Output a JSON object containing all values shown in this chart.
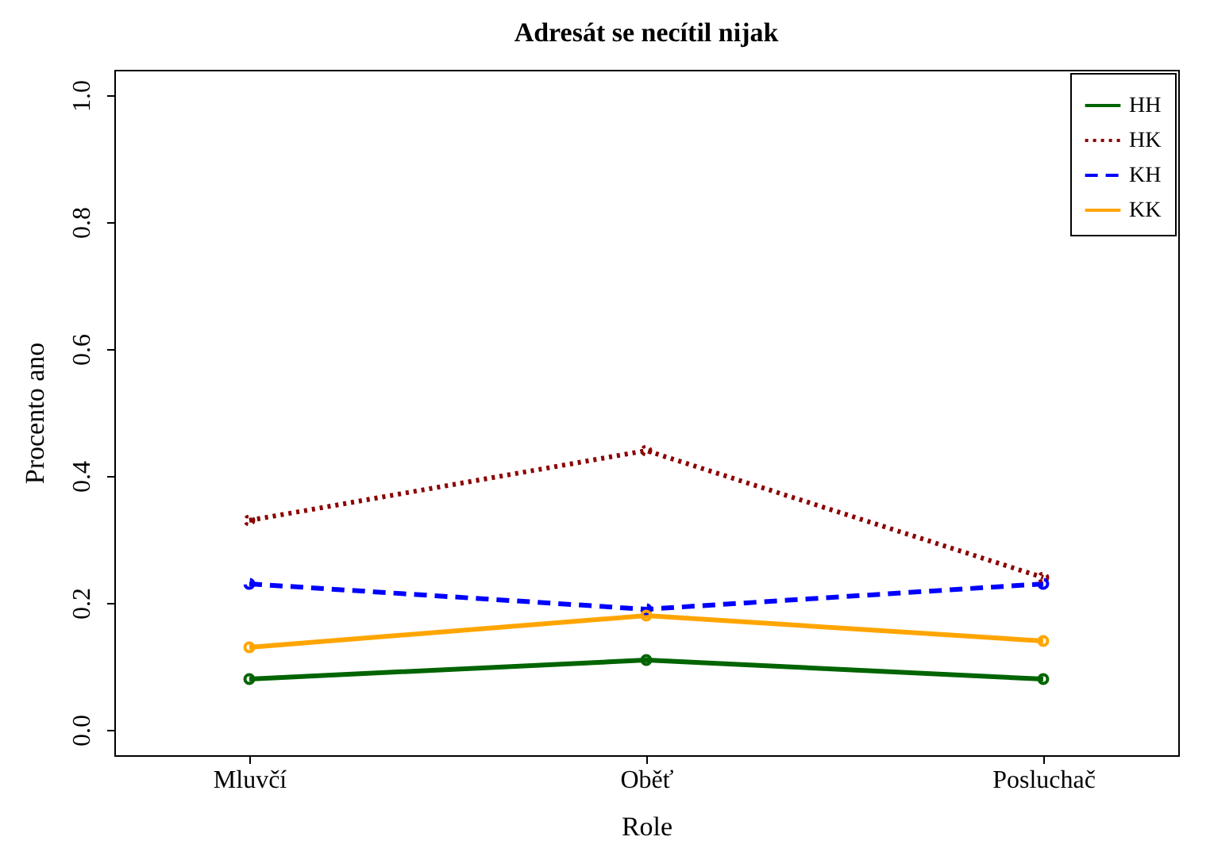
{
  "chart_data": {
    "type": "line",
    "title": "Adresát se necítil nijak",
    "xlabel": "Role",
    "ylabel": "Procento ano",
    "categories": [
      "Mluvčí",
      "Oběť",
      "Posluchač"
    ],
    "series": [
      {
        "name": "HH",
        "color": "#006400",
        "line_style": "solid",
        "values": [
          0.08,
          0.11,
          0.08
        ]
      },
      {
        "name": "HK",
        "color": "#8b0000",
        "line_style": "dotted",
        "values": [
          0.33,
          0.44,
          0.24
        ]
      },
      {
        "name": "KH",
        "color": "#0000ff",
        "line_style": "dashed",
        "values": [
          0.23,
          0.19,
          0.23
        ]
      },
      {
        "name": "KK",
        "color": "#ffa500",
        "line_style": "solid",
        "values": [
          0.13,
          0.18,
          0.14
        ]
      }
    ],
    "ylim": [
      -0.04,
      1.04
    ],
    "yticks": [
      {
        "value": 0,
        "label": "0.0"
      },
      {
        "value": 0.2,
        "label": "0.2"
      },
      {
        "value": 0.4,
        "label": "0.4"
      },
      {
        "value": 0.6,
        "label": "0.6"
      },
      {
        "value": 0.8,
        "label": "0.8"
      },
      {
        "value": 1,
        "label": "1.0"
      }
    ],
    "grid": false,
    "legend": "top right",
    "marker": "circle"
  }
}
